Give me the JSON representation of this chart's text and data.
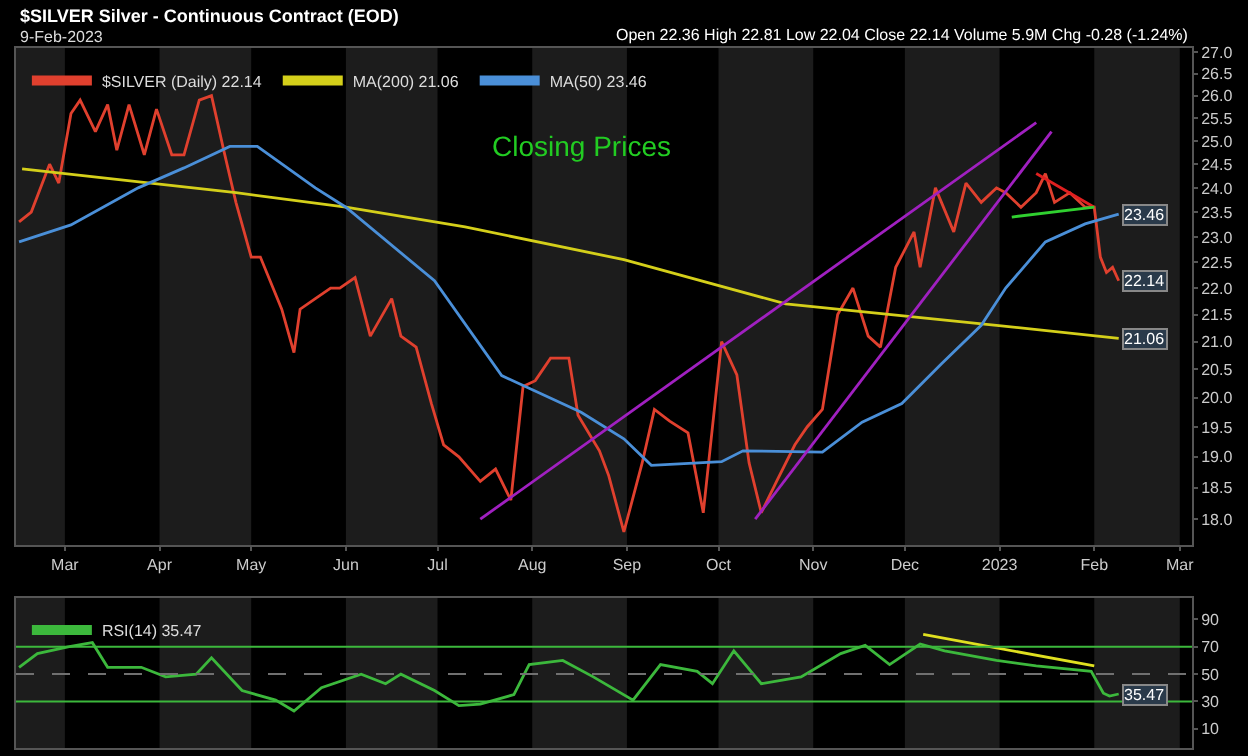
{
  "chart_data": [
    {
      "type": "line",
      "title": "$SILVER Silver - Continuous Contract (EOD)",
      "subtitle": "9-Feb-2023",
      "annotations": [
        "Open 22.36 High 22.81 Low 22.04 Close 22.14 Volume 5.9M Chg -0.28 (-1.24%)",
        "Closing Prices",
        {
          "text": "23.46",
          "x": "2023-02-09",
          "y": 23.46
        },
        {
          "text": "22.14",
          "x": "2023-02-09",
          "y": 22.14
        },
        {
          "text": "21.06",
          "x": "2023-02-09",
          "y": 21.06
        }
      ],
      "log": "y",
      "grid": false,
      "legend": "top left",
      "tick_labels": "xy",
      "xlim": [
        "2022-02-13",
        "2023-03-05"
      ],
      "xticks": [
        {
          "value": "2022-03-01",
          "label": "Mar"
        },
        {
          "value": "2022-04-01",
          "label": "Apr"
        },
        {
          "value": "2022-05-01",
          "label": "May"
        },
        {
          "value": "2022-06-01",
          "label": "Jun"
        },
        {
          "value": "2022-07-01",
          "label": "Jul"
        },
        {
          "value": "2022-08-01",
          "label": "Aug"
        },
        {
          "value": "2022-09-01",
          "label": "Sep"
        },
        {
          "value": "2022-10-01",
          "label": "Oct"
        },
        {
          "value": "2022-11-01",
          "label": "Nov"
        },
        {
          "value": "2022-12-01",
          "label": "Dec"
        },
        {
          "value": "2023-01-01",
          "label": "2023"
        },
        {
          "value": "2023-02-01",
          "label": "Feb"
        },
        {
          "value": "2023-03-01",
          "label": "Mar"
        }
      ],
      "ylim": [
        17.6,
        27.1
      ],
      "yticks": [
        {
          "value": 18,
          "label": "18.0"
        },
        18.5,
        {
          "value": 19,
          "label": "19.0"
        },
        19.5,
        {
          "value": 20,
          "label": "20.0"
        },
        20.5,
        {
          "value": 21,
          "label": "21.0"
        },
        21.5,
        {
          "value": 22,
          "label": "22.0"
        },
        22.5,
        {
          "value": 23,
          "label": "23.0"
        },
        23.5,
        {
          "value": 24,
          "label": "24.0"
        },
        24.5,
        {
          "value": 25,
          "label": "25.0"
        },
        25.5,
        {
          "value": 26,
          "label": "26.0"
        },
        26.5,
        {
          "value": 27,
          "label": "27.0"
        }
      ],
      "bands": [
        {
          "axis": "x",
          "from": "2022-02-13",
          "to": "2022-03-01",
          "color": "#1c1c1c"
        },
        {
          "axis": "x",
          "from": "2022-04-01",
          "to": "2022-05-01",
          "color": "#1c1c1c"
        },
        {
          "axis": "x",
          "from": "2022-06-01",
          "to": "2022-07-01",
          "color": "#1c1c1c"
        },
        {
          "axis": "x",
          "from": "2022-08-01",
          "to": "2022-09-01",
          "color": "#1c1c1c"
        },
        {
          "axis": "x",
          "from": "2022-10-01",
          "to": "2022-11-01",
          "color": "#1c1c1c"
        },
        {
          "axis": "x",
          "from": "2022-12-01",
          "to": "2023-01-01",
          "color": "#1c1c1c"
        },
        {
          "axis": "x",
          "from": "2023-02-01",
          "to": "2023-03-01",
          "color": "#1c1c1c"
        }
      ],
      "series": [
        {
          "name": "$SILVER (Daily) 22.14",
          "color": "#e0402e",
          "x": [
            "2022-02-14",
            "2022-02-18",
            "2022-02-24",
            "2022-02-27",
            "2022-03-03",
            "2022-03-06",
            "2022-03-11",
            "2022-03-15",
            "2022-03-18",
            "2022-03-22",
            "2022-03-27",
            "2022-03-31",
            "2022-04-05",
            "2022-04-09",
            "2022-04-14",
            "2022-04-18",
            "2022-04-22",
            "2022-04-26",
            "2022-05-01",
            "2022-05-04",
            "2022-05-11",
            "2022-05-15",
            "2022-05-17",
            "2022-05-22",
            "2022-05-27",
            "2022-05-30",
            "2022-06-04",
            "2022-06-09",
            "2022-06-16",
            "2022-06-19",
            "2022-06-24",
            "2022-06-29",
            "2022-07-03",
            "2022-07-08",
            "2022-07-15",
            "2022-07-20",
            "2022-07-25",
            "2022-07-29",
            "2022-08-02",
            "2022-08-07",
            "2022-08-13",
            "2022-08-16",
            "2022-08-23",
            "2022-08-26",
            "2022-08-31",
            "2022-09-06",
            "2022-09-10",
            "2022-09-15",
            "2022-09-21",
            "2022-09-26",
            "2022-10-02",
            "2022-10-07",
            "2022-10-11",
            "2022-10-15",
            "2022-10-20",
            "2022-10-26",
            "2022-10-30",
            "2022-11-04",
            "2022-11-09",
            "2022-11-14",
            "2022-11-19",
            "2022-11-23",
            "2022-11-28",
            "2022-12-04",
            "2022-12-06",
            "2022-12-11",
            "2022-12-17",
            "2022-12-21",
            "2022-12-26",
            "2022-12-31",
            "2023-01-03",
            "2023-01-08",
            "2023-01-13",
            "2023-01-16",
            "2023-01-19",
            "2023-01-24",
            "2023-01-29",
            "2023-02-01",
            "2023-02-03",
            "2023-02-05",
            "2023-02-07",
            "2023-02-09"
          ],
          "values": [
            23.3,
            23.5,
            24.5,
            24.1,
            25.6,
            25.9,
            25.2,
            25.8,
            24.8,
            25.8,
            24.7,
            25.7,
            24.7,
            24.7,
            25.9,
            26.0,
            24.8,
            23.7,
            22.6,
            22.6,
            21.6,
            20.8,
            21.6,
            21.8,
            22.0,
            22.0,
            22.2,
            21.1,
            21.8,
            21.1,
            20.9,
            19.9,
            19.2,
            19.0,
            18.6,
            18.8,
            18.3,
            20.2,
            20.3,
            20.7,
            20.7,
            19.7,
            19.1,
            18.7,
            17.8,
            18.9,
            19.8,
            19.6,
            19.4,
            18.1,
            21.0,
            20.4,
            18.9,
            18.1,
            18.6,
            19.2,
            19.5,
            19.8,
            21.5,
            22.0,
            21.1,
            20.9,
            22.4,
            23.1,
            22.4,
            24.0,
            23.1,
            24.1,
            23.7,
            24.0,
            23.9,
            23.6,
            23.9,
            24.3,
            23.7,
            23.9,
            23.6,
            23.6,
            22.6,
            22.3,
            22.4,
            22.14
          ]
        },
        {
          "name": "MA(200) 21.06",
          "color": "#d4cf1a",
          "x": [
            "2022-02-15",
            "2022-04-26",
            "2022-06-01",
            "2022-07-10",
            "2022-08-31",
            "2022-10-23",
            "2022-12-31",
            "2023-02-09"
          ],
          "values": [
            24.4,
            23.9,
            23.6,
            23.2,
            22.55,
            21.7,
            21.3,
            21.06
          ]
        },
        {
          "name": "MA(50) 23.46",
          "color": "#4a8fd8",
          "x": [
            "2022-02-14",
            "2022-03-03",
            "2022-03-25",
            "2022-04-09",
            "2022-04-24",
            "2022-05-03",
            "2022-05-22",
            "2022-06-01",
            "2022-06-30",
            "2022-07-22",
            "2022-08-17",
            "2022-08-31",
            "2022-09-09",
            "2022-10-02",
            "2022-10-09",
            "2022-11-04",
            "2022-11-17",
            "2022-11-30",
            "2022-12-13",
            "2022-12-26",
            "2023-01-03",
            "2023-01-16",
            "2023-01-29",
            "2023-02-09"
          ],
          "values": [
            22.9,
            23.24,
            24.0,
            24.42,
            24.88,
            24.88,
            24.0,
            23.6,
            22.14,
            20.39,
            19.75,
            19.3,
            18.86,
            18.92,
            19.1,
            19.08,
            19.58,
            19.9,
            20.6,
            21.3,
            22.0,
            22.9,
            23.26,
            23.46
          ]
        },
        {
          "color": "#a020c0",
          "x": [
            "2022-07-15",
            "2023-01-13"
          ],
          "values": [
            18.0,
            25.4
          ]
        },
        {
          "color": "#a020c0",
          "x": [
            "2022-10-13",
            "2023-01-18"
          ],
          "values": [
            18.0,
            25.2
          ]
        },
        {
          "color": "#e02020",
          "x": [
            "2023-01-13",
            "2023-02-01"
          ],
          "values": [
            24.3,
            23.6
          ]
        },
        {
          "color": "#30d030",
          "x": [
            "2023-01-05",
            "2023-02-01"
          ],
          "values": [
            23.4,
            23.6
          ]
        }
      ]
    },
    {
      "type": "line",
      "tick_labels": "y",
      "grid": false,
      "legend": "top left",
      "xlim": [
        "2022-02-13",
        "2023-03-05"
      ],
      "ylim": [
        -4,
        106
      ],
      "yticks": [
        10,
        30,
        50,
        70,
        90
      ],
      "annotations": [
        {
          "text": "35.47",
          "x": "2023-02-09",
          "y": 35.47
        }
      ],
      "ref_lines": [
        {
          "axis": "y",
          "value": 70,
          "color": "#3cb83c"
        },
        {
          "axis": "y",
          "value": 30,
          "color": "#3cb83c"
        },
        {
          "axis": "y",
          "value": 50,
          "color": "#707070",
          "line_style": "dashed"
        }
      ],
      "bands": [
        {
          "axis": "x",
          "from": "2022-02-13",
          "to": "2022-03-01",
          "color": "#1c1c1c"
        },
        {
          "axis": "x",
          "from": "2022-04-01",
          "to": "2022-05-01",
          "color": "#1c1c1c"
        },
        {
          "axis": "x",
          "from": "2022-06-01",
          "to": "2022-07-01",
          "color": "#1c1c1c"
        },
        {
          "axis": "x",
          "from": "2022-08-01",
          "to": "2022-09-01",
          "color": "#1c1c1c"
        },
        {
          "axis": "x",
          "from": "2022-10-01",
          "to": "2022-11-01",
          "color": "#1c1c1c"
        },
        {
          "axis": "x",
          "from": "2022-12-01",
          "to": "2023-01-01",
          "color": "#1c1c1c"
        },
        {
          "axis": "x",
          "from": "2023-02-01",
          "to": "2023-03-01",
          "color": "#1c1c1c"
        }
      ],
      "series": [
        {
          "name": "RSI(14) 35.47",
          "color": "#3cb83c",
          "x": [
            "2022-02-14",
            "2022-02-20",
            "2022-03-02",
            "2022-03-10",
            "2022-03-15",
            "2022-03-26",
            "2022-04-03",
            "2022-04-13",
            "2022-04-18",
            "2022-04-28",
            "2022-05-09",
            "2022-05-15",
            "2022-05-24",
            "2022-06-06",
            "2022-06-14",
            "2022-06-19",
            "2022-06-30",
            "2022-07-08",
            "2022-07-15",
            "2022-07-26",
            "2022-07-31",
            "2022-08-11",
            "2022-08-21",
            "2022-09-03",
            "2022-09-12",
            "2022-09-24",
            "2022-09-29",
            "2022-10-06",
            "2022-10-15",
            "2022-10-28",
            "2022-11-10",
            "2022-11-18",
            "2022-11-26",
            "2022-12-06",
            "2022-12-14",
            "2022-12-31",
            "2023-01-13",
            "2023-01-31",
            "2023-02-04",
            "2023-02-06",
            "2023-02-09"
          ],
          "values": [
            55,
            65,
            70,
            73,
            55,
            55,
            48,
            50,
            62,
            38,
            31,
            23,
            40,
            50,
            43,
            50,
            38,
            27,
            28,
            35,
            57,
            60,
            48,
            31,
            57,
            52,
            43,
            67,
            43,
            48,
            65,
            71,
            57,
            72,
            67,
            60,
            56,
            52,
            36,
            34,
            35.47
          ]
        },
        {
          "color": "#e0e020",
          "x": [
            "2022-12-07",
            "2023-02-01"
          ],
          "values": [
            79,
            56
          ]
        }
      ]
    }
  ]
}
